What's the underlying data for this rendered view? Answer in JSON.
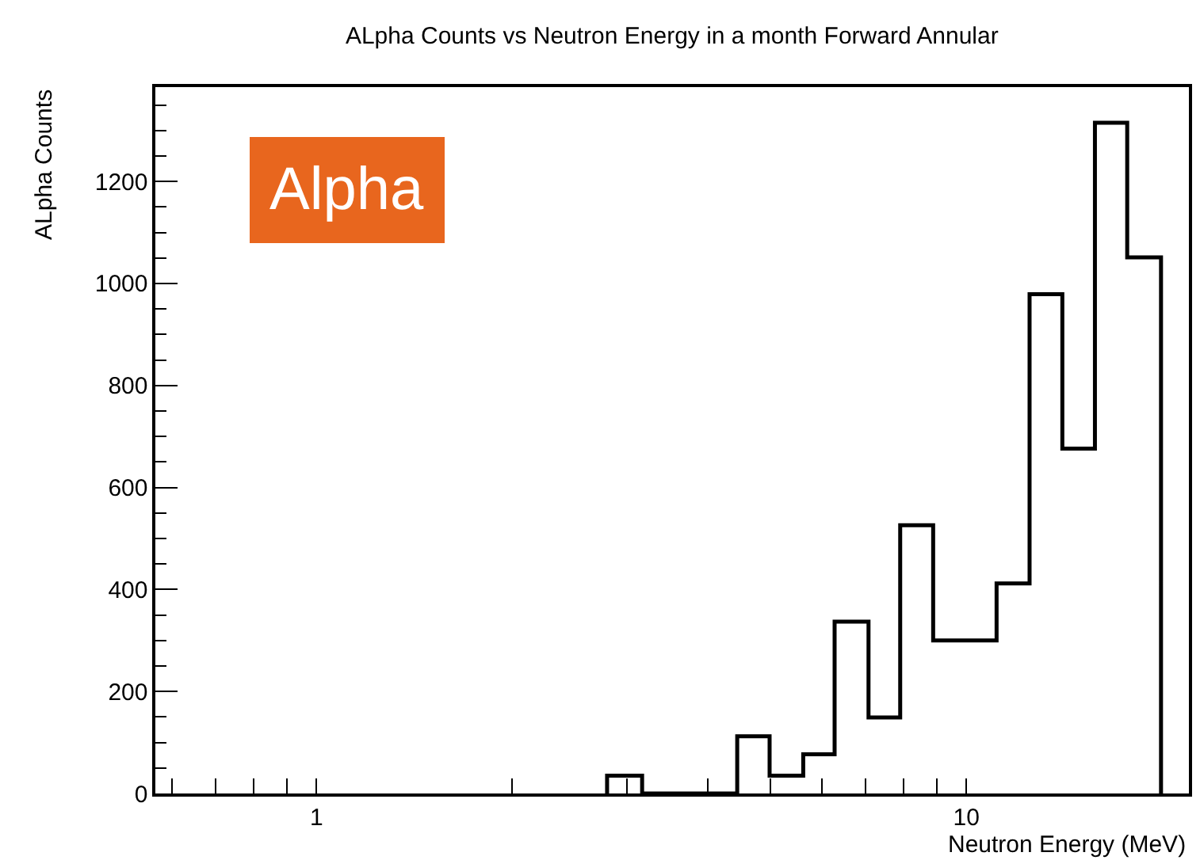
{
  "chart_data": {
    "type": "histogram",
    "title": "ALpha Counts vs Neutron Energy in a month Forward Annular",
    "xlabel": "Neutron Energy (MeV)",
    "ylabel": "ALpha Counts",
    "annotations": [
      "Alpha"
    ],
    "bins": [
      2.8,
      3.17,
      3.55,
      3.97,
      4.44,
      4.98,
      5.61,
      6.27,
      7.07,
      7.91,
      8.89,
      9.95,
      11.13,
      12.51,
      14.05,
      15.77,
      17.68,
      19.93
    ],
    "values": [
      35,
      0,
      0,
      0,
      112,
      35,
      77,
      337,
      149,
      526,
      300,
      300,
      412,
      979,
      676,
      1315,
      1051
    ],
    "color": "#000000",
    "log": "x",
    "xlim": [
      0.565,
      22
    ],
    "ylim": [
      0,
      1385
    ],
    "xticks": [
      {
        "value": 0.6,
        "label": null
      },
      {
        "value": 0.7,
        "label": null
      },
      {
        "value": 0.8,
        "label": null
      },
      {
        "value": 0.9,
        "label": null
      },
      1,
      {
        "value": 2,
        "label": null
      },
      {
        "value": 3,
        "label": null
      },
      {
        "value": 4,
        "label": null
      },
      {
        "value": 5,
        "label": null
      },
      {
        "value": 6,
        "label": null
      },
      {
        "value": 7,
        "label": null
      },
      {
        "value": 8,
        "label": null
      },
      {
        "value": 9,
        "label": null
      },
      10,
      {
        "value": 20,
        "label": null
      }
    ],
    "yticks": [
      0,
      200,
      400,
      600,
      800,
      1000,
      1200
    ]
  }
}
